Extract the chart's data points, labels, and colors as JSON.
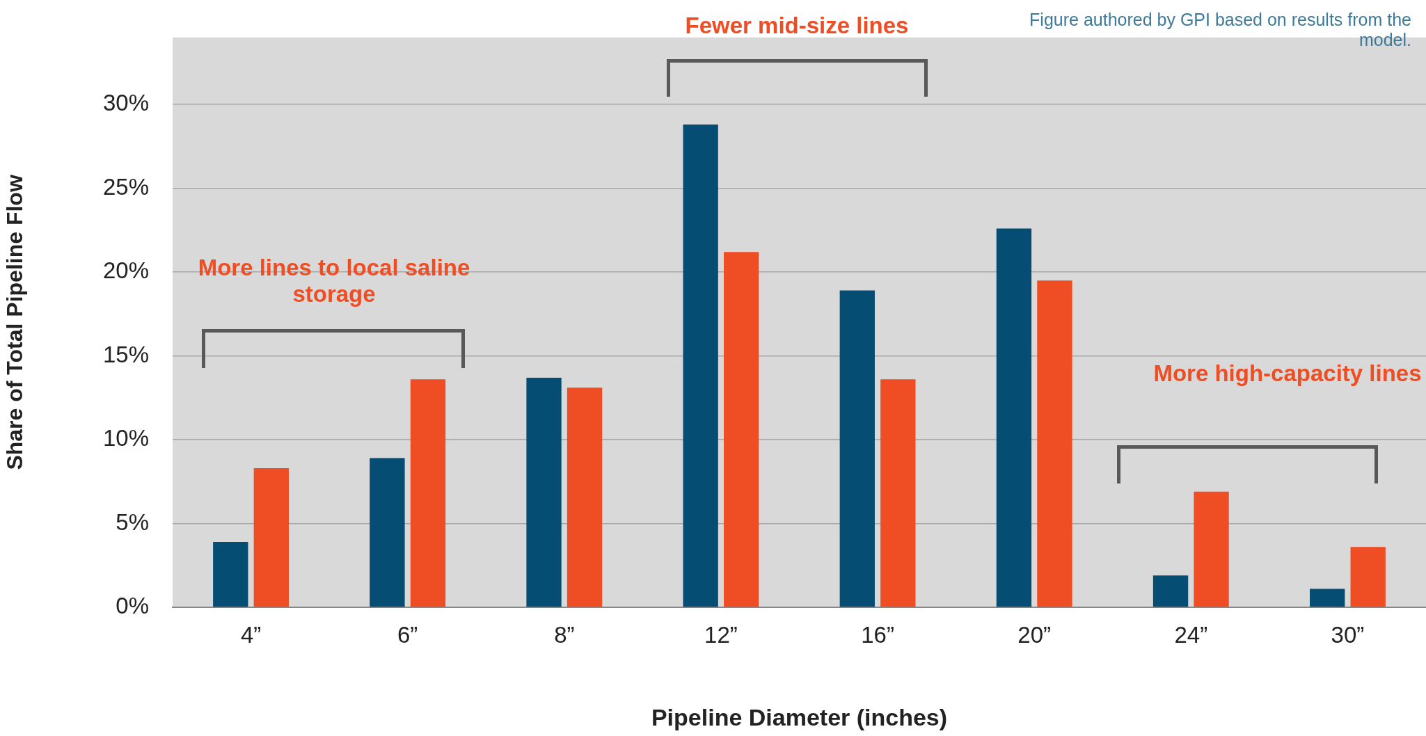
{
  "chart_data": {
    "type": "bar",
    "xlabel": "Pipeline Diameter (inches)",
    "ylabel": "Share of Total Pipeline Flow",
    "categories": [
      "4”",
      "6”",
      "8”",
      "12”",
      "16”",
      "20”",
      "24”",
      "30”"
    ],
    "series": [
      {
        "color": "#054d73",
        "values": [
          3.9,
          8.9,
          13.7,
          28.8,
          18.9,
          22.6,
          1.9,
          1.1
        ]
      },
      {
        "color": "#ef4d23",
        "values": [
          8.3,
          13.6,
          13.1,
          21.2,
          13.6,
          19.5,
          6.9,
          3.6
        ]
      }
    ],
    "ylim": [
      0,
      34
    ],
    "yticks": [
      {
        "value": 0,
        "label": "0%"
      },
      {
        "value": 5,
        "label": "5%"
      },
      {
        "value": 10,
        "label": "10%"
      },
      {
        "value": 15,
        "label": "15%"
      },
      {
        "value": 20,
        "label": "20%"
      },
      {
        "value": 25,
        "label": "25%"
      },
      {
        "value": 30,
        "label": "30%"
      }
    ],
    "grid": "y",
    "legend": false,
    "annotations": [
      "Fewer mid-size lines",
      "Figure authored by GPI based on results from the model.",
      "More lines to local saline storage",
      "More high-capacity lines"
    ]
  }
}
